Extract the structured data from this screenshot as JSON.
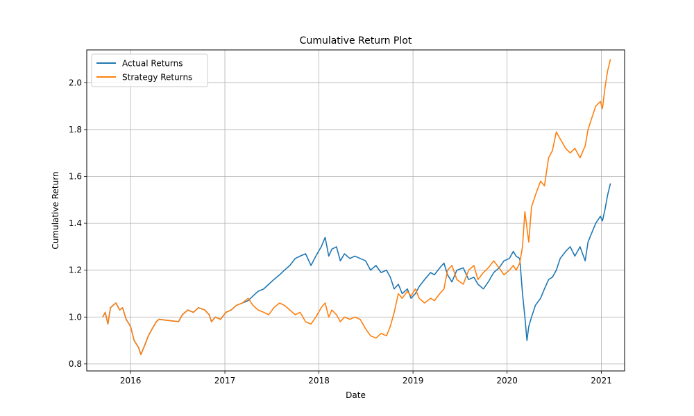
{
  "chart_data": {
    "type": "line",
    "title": "Cumulative Return Plot",
    "xlabel": "Date",
    "ylabel": "Cumulative Return",
    "xlim": [
      "2015-07-15",
      "2021-04-01"
    ],
    "ylim": [
      0.77,
      2.14
    ],
    "grid": true,
    "legend_position": "top-left",
    "x_ticks": [
      {
        "label": "2016",
        "date": "2016-01-01"
      },
      {
        "label": "2017",
        "date": "2017-01-01"
      },
      {
        "label": "2018",
        "date": "2018-01-01"
      },
      {
        "label": "2019",
        "date": "2019-01-01"
      },
      {
        "label": "2020",
        "date": "2020-01-01"
      },
      {
        "label": "2021",
        "date": "2021-01-01"
      }
    ],
    "y_ticks": [
      0.8,
      1.0,
      1.2,
      1.4,
      1.6,
      1.8,
      2.0
    ],
    "series": [
      {
        "name": "Actual Returns",
        "color": "#1f77b4",
        "points": [
          [
            "2015-09-15",
            1.0
          ],
          [
            "2015-09-25",
            1.02
          ],
          [
            "2015-10-05",
            0.97
          ],
          [
            "2015-10-15",
            1.04
          ],
          [
            "2015-10-25",
            1.05
          ],
          [
            "2015-11-05",
            1.06
          ],
          [
            "2015-11-20",
            1.03
          ],
          [
            "2015-12-01",
            1.04
          ],
          [
            "2015-12-15",
            0.99
          ],
          [
            "2016-01-01",
            0.96
          ],
          [
            "2016-01-15",
            0.9
          ],
          [
            "2016-02-01",
            0.87
          ],
          [
            "2016-02-10",
            0.84
          ],
          [
            "2016-02-25",
            0.88
          ],
          [
            "2016-03-10",
            0.92
          ],
          [
            "2016-03-25",
            0.95
          ],
          [
            "2016-04-10",
            0.98
          ],
          [
            "2016-04-20",
            0.99
          ],
          [
            "2016-07-05",
            0.98
          ],
          [
            "2016-07-20",
            1.01
          ],
          [
            "2016-08-10",
            1.03
          ],
          [
            "2016-09-01",
            1.02
          ],
          [
            "2016-09-20",
            1.04
          ],
          [
            "2016-10-15",
            1.03
          ],
          [
            "2016-11-01",
            1.01
          ],
          [
            "2016-11-10",
            0.98
          ],
          [
            "2016-11-25",
            1.0
          ],
          [
            "2016-12-15",
            0.99
          ],
          [
            "2017-01-05",
            1.02
          ],
          [
            "2017-01-25",
            1.03
          ],
          [
            "2017-02-15",
            1.05
          ],
          [
            "2017-03-10",
            1.06
          ],
          [
            "2017-04-01",
            1.07
          ],
          [
            "2017-04-20",
            1.09
          ],
          [
            "2017-05-10",
            1.11
          ],
          [
            "2017-06-01",
            1.12
          ],
          [
            "2017-06-20",
            1.14
          ],
          [
            "2017-07-10",
            1.16
          ],
          [
            "2017-08-01",
            1.18
          ],
          [
            "2017-08-20",
            1.2
          ],
          [
            "2017-09-10",
            1.22
          ],
          [
            "2017-10-01",
            1.25
          ],
          [
            "2017-10-20",
            1.26
          ],
          [
            "2017-11-10",
            1.27
          ],
          [
            "2017-12-01",
            1.22
          ],
          [
            "2017-12-20",
            1.26
          ],
          [
            "2018-01-10",
            1.3
          ],
          [
            "2018-01-25",
            1.34
          ],
          [
            "2018-02-08",
            1.26
          ],
          [
            "2018-02-20",
            1.29
          ],
          [
            "2018-03-10",
            1.3
          ],
          [
            "2018-03-25",
            1.24
          ],
          [
            "2018-04-10",
            1.27
          ],
          [
            "2018-05-01",
            1.25
          ],
          [
            "2018-05-20",
            1.26
          ],
          [
            "2018-06-10",
            1.25
          ],
          [
            "2018-07-01",
            1.24
          ],
          [
            "2018-07-20",
            1.2
          ],
          [
            "2018-08-10",
            1.22
          ],
          [
            "2018-08-30",
            1.19
          ],
          [
            "2018-09-20",
            1.2
          ],
          [
            "2018-10-05",
            1.17
          ],
          [
            "2018-10-20",
            1.12
          ],
          [
            "2018-11-05",
            1.14
          ],
          [
            "2018-11-20",
            1.1
          ],
          [
            "2018-12-10",
            1.12
          ],
          [
            "2018-12-24",
            1.08
          ],
          [
            "2019-01-10",
            1.1
          ],
          [
            "2019-01-25",
            1.13
          ],
          [
            "2019-02-15",
            1.16
          ],
          [
            "2019-03-10",
            1.19
          ],
          [
            "2019-03-25",
            1.18
          ],
          [
            "2019-04-15",
            1.21
          ],
          [
            "2019-05-01",
            1.23
          ],
          [
            "2019-05-15",
            1.18
          ],
          [
            "2019-06-01",
            1.15
          ],
          [
            "2019-06-20",
            1.2
          ],
          [
            "2019-07-15",
            1.21
          ],
          [
            "2019-08-05",
            1.16
          ],
          [
            "2019-08-25",
            1.17
          ],
          [
            "2019-09-10",
            1.14
          ],
          [
            "2019-10-01",
            1.12
          ],
          [
            "2019-10-20",
            1.15
          ],
          [
            "2019-11-10",
            1.19
          ],
          [
            "2019-12-01",
            1.21
          ],
          [
            "2019-12-20",
            1.24
          ],
          [
            "2020-01-10",
            1.25
          ],
          [
            "2020-01-25",
            1.28
          ],
          [
            "2020-02-05",
            1.26
          ],
          [
            "2020-02-19",
            1.25
          ],
          [
            "2020-03-01",
            1.1
          ],
          [
            "2020-03-10",
            1.0
          ],
          [
            "2020-03-18",
            0.9
          ],
          [
            "2020-03-25",
            0.96
          ],
          [
            "2020-04-05",
            1.0
          ],
          [
            "2020-04-20",
            1.05
          ],
          [
            "2020-05-10",
            1.08
          ],
          [
            "2020-05-25",
            1.12
          ],
          [
            "2020-06-10",
            1.16
          ],
          [
            "2020-06-25",
            1.17
          ],
          [
            "2020-07-10",
            1.2
          ],
          [
            "2020-07-25",
            1.25
          ],
          [
            "2020-08-15",
            1.28
          ],
          [
            "2020-09-02",
            1.3
          ],
          [
            "2020-09-20",
            1.26
          ],
          [
            "2020-10-10",
            1.3
          ],
          [
            "2020-10-30",
            1.24
          ],
          [
            "2020-11-10",
            1.32
          ],
          [
            "2020-11-25",
            1.36
          ],
          [
            "2020-12-10",
            1.4
          ],
          [
            "2020-12-28",
            1.43
          ],
          [
            "2021-01-05",
            1.41
          ],
          [
            "2021-01-15",
            1.46
          ],
          [
            "2021-01-25",
            1.52
          ],
          [
            "2021-02-05",
            1.57
          ]
        ]
      },
      {
        "name": "Strategy Returns",
        "color": "#ff7f0e",
        "points": [
          [
            "2015-09-15",
            1.0
          ],
          [
            "2015-09-25",
            1.02
          ],
          [
            "2015-10-05",
            0.97
          ],
          [
            "2015-10-15",
            1.04
          ],
          [
            "2015-10-25",
            1.05
          ],
          [
            "2015-11-05",
            1.06
          ],
          [
            "2015-11-20",
            1.03
          ],
          [
            "2015-12-01",
            1.04
          ],
          [
            "2015-12-15",
            0.99
          ],
          [
            "2016-01-01",
            0.96
          ],
          [
            "2016-01-15",
            0.9
          ],
          [
            "2016-02-01",
            0.87
          ],
          [
            "2016-02-10",
            0.84
          ],
          [
            "2016-02-25",
            0.88
          ],
          [
            "2016-03-10",
            0.92
          ],
          [
            "2016-03-25",
            0.95
          ],
          [
            "2016-04-10",
            0.98
          ],
          [
            "2016-04-20",
            0.99
          ],
          [
            "2016-07-05",
            0.98
          ],
          [
            "2016-07-20",
            1.01
          ],
          [
            "2016-08-10",
            1.03
          ],
          [
            "2016-09-01",
            1.02
          ],
          [
            "2016-09-20",
            1.04
          ],
          [
            "2016-10-15",
            1.03
          ],
          [
            "2016-11-01",
            1.01
          ],
          [
            "2016-11-10",
            0.98
          ],
          [
            "2016-11-25",
            1.0
          ],
          [
            "2016-12-15",
            0.99
          ],
          [
            "2017-01-05",
            1.02
          ],
          [
            "2017-01-25",
            1.03
          ],
          [
            "2017-02-15",
            1.05
          ],
          [
            "2017-03-10",
            1.06
          ],
          [
            "2017-04-01",
            1.08
          ],
          [
            "2017-04-20",
            1.05
          ],
          [
            "2017-05-10",
            1.03
          ],
          [
            "2017-06-01",
            1.02
          ],
          [
            "2017-06-20",
            1.01
          ],
          [
            "2017-07-10",
            1.04
          ],
          [
            "2017-08-01",
            1.06
          ],
          [
            "2017-08-20",
            1.05
          ],
          [
            "2017-09-10",
            1.03
          ],
          [
            "2017-10-01",
            1.01
          ],
          [
            "2017-10-20",
            1.02
          ],
          [
            "2017-11-10",
            0.98
          ],
          [
            "2017-12-01",
            0.97
          ],
          [
            "2017-12-20",
            1.0
          ],
          [
            "2018-01-10",
            1.04
          ],
          [
            "2018-01-25",
            1.06
          ],
          [
            "2018-02-08",
            1.0
          ],
          [
            "2018-02-20",
            1.03
          ],
          [
            "2018-03-10",
            1.01
          ],
          [
            "2018-03-25",
            0.98
          ],
          [
            "2018-04-10",
            1.0
          ],
          [
            "2018-05-01",
            0.99
          ],
          [
            "2018-05-20",
            1.0
          ],
          [
            "2018-06-10",
            0.99
          ],
          [
            "2018-07-01",
            0.95
          ],
          [
            "2018-07-20",
            0.92
          ],
          [
            "2018-08-10",
            0.91
          ],
          [
            "2018-08-30",
            0.93
          ],
          [
            "2018-09-20",
            0.92
          ],
          [
            "2018-10-05",
            0.96
          ],
          [
            "2018-10-20",
            1.02
          ],
          [
            "2018-11-05",
            1.1
          ],
          [
            "2018-11-20",
            1.08
          ],
          [
            "2018-12-10",
            1.11
          ],
          [
            "2018-12-24",
            1.09
          ],
          [
            "2019-01-10",
            1.12
          ],
          [
            "2019-01-25",
            1.08
          ],
          [
            "2019-02-15",
            1.06
          ],
          [
            "2019-03-10",
            1.08
          ],
          [
            "2019-03-25",
            1.07
          ],
          [
            "2019-04-15",
            1.1
          ],
          [
            "2019-05-01",
            1.12
          ],
          [
            "2019-05-15",
            1.2
          ],
          [
            "2019-06-01",
            1.22
          ],
          [
            "2019-06-20",
            1.16
          ],
          [
            "2019-07-15",
            1.14
          ],
          [
            "2019-08-05",
            1.2
          ],
          [
            "2019-08-25",
            1.22
          ],
          [
            "2019-09-10",
            1.16
          ],
          [
            "2019-10-01",
            1.19
          ],
          [
            "2019-10-20",
            1.21
          ],
          [
            "2019-11-10",
            1.24
          ],
          [
            "2019-12-01",
            1.21
          ],
          [
            "2019-12-20",
            1.18
          ],
          [
            "2020-01-10",
            1.2
          ],
          [
            "2020-01-25",
            1.22
          ],
          [
            "2020-02-05",
            1.2
          ],
          [
            "2020-02-19",
            1.23
          ],
          [
            "2020-03-01",
            1.3
          ],
          [
            "2020-03-10",
            1.45
          ],
          [
            "2020-03-18",
            1.38
          ],
          [
            "2020-03-25",
            1.32
          ],
          [
            "2020-04-05",
            1.47
          ],
          [
            "2020-04-20",
            1.52
          ],
          [
            "2020-05-10",
            1.58
          ],
          [
            "2020-05-25",
            1.56
          ],
          [
            "2020-06-10",
            1.68
          ],
          [
            "2020-06-25",
            1.71
          ],
          [
            "2020-07-10",
            1.79
          ],
          [
            "2020-07-25",
            1.76
          ],
          [
            "2020-08-15",
            1.72
          ],
          [
            "2020-09-02",
            1.7
          ],
          [
            "2020-09-20",
            1.72
          ],
          [
            "2020-10-10",
            1.68
          ],
          [
            "2020-10-30",
            1.73
          ],
          [
            "2020-11-10",
            1.8
          ],
          [
            "2020-11-25",
            1.85
          ],
          [
            "2020-12-10",
            1.9
          ],
          [
            "2020-12-28",
            1.92
          ],
          [
            "2021-01-05",
            1.89
          ],
          [
            "2021-01-15",
            1.98
          ],
          [
            "2021-01-25",
            2.05
          ],
          [
            "2021-02-05",
            2.1
          ]
        ]
      }
    ]
  }
}
